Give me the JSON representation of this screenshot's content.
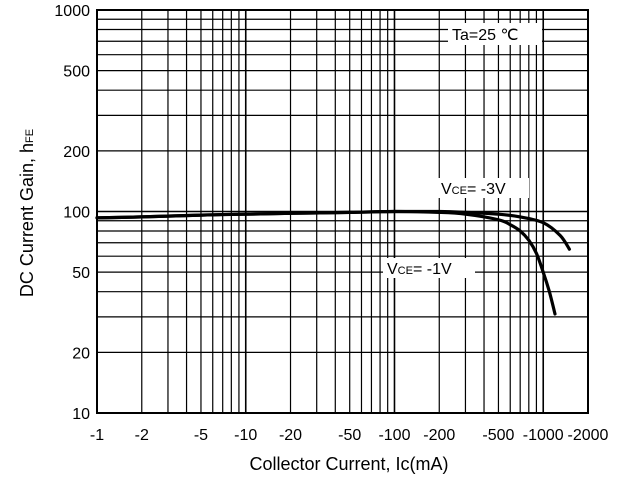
{
  "chart_data": {
    "type": "line",
    "title": "",
    "xlabel": "Collector Current, Ic(mA)",
    "ylabel_main": "DC Current Gain, h",
    "ylabel_sub": "FE",
    "x_scale": "log",
    "y_scale": "log",
    "xlim": [
      -1,
      -2000
    ],
    "ylim": [
      10,
      1000
    ],
    "x_ticks": [
      {
        "value": -1,
        "label": "-1"
      },
      {
        "value": -2,
        "label": "-2"
      },
      {
        "value": -5,
        "label": "-5"
      },
      {
        "value": -10,
        "label": "-10"
      },
      {
        "value": -20,
        "label": "-20"
      },
      {
        "value": -50,
        "label": "-50"
      },
      {
        "value": -100,
        "label": "-100"
      },
      {
        "value": -200,
        "label": "-200"
      },
      {
        "value": -500,
        "label": "-500"
      },
      {
        "value": -1000,
        "label": "-1000"
      },
      {
        "value": -2000,
        "label": "-2000"
      }
    ],
    "y_ticks": [
      {
        "value": 10,
        "label": "10"
      },
      {
        "value": 20,
        "label": "20"
      },
      {
        "value": 50,
        "label": "50"
      },
      {
        "value": 100,
        "label": "100"
      },
      {
        "value": 200,
        "label": "200"
      },
      {
        "value": 500,
        "label": "500"
      },
      {
        "value": 1000,
        "label": "1000"
      }
    ],
    "grid": true,
    "condition_label": "Ta=25 ℃",
    "series": [
      {
        "name": "VCE= -3V",
        "label_main": "V",
        "label_sub": "CE",
        "label_rest": "= -3V",
        "x": [
          -1,
          -2,
          -5,
          -10,
          -20,
          -50,
          -100,
          -200,
          -300,
          -500,
          -700,
          -1000,
          -1300,
          -1500
        ],
        "y": [
          93,
          94,
          96,
          97,
          98,
          99,
          100,
          100,
          99,
          97,
          94,
          88,
          76,
          65
        ]
      },
      {
        "name": "VCE= -1V",
        "label_main": "V",
        "label_sub": "CE",
        "label_rest": "= -1V",
        "x": [
          -1,
          -2,
          -5,
          -10,
          -20,
          -50,
          -100,
          -200,
          -300,
          -500,
          -600,
          -700,
          -800,
          -900,
          -1000,
          -1100,
          -1200
        ],
        "y": [
          93,
          94,
          96,
          97,
          98,
          99,
          100,
          99,
          97,
          91,
          86,
          80,
          72,
          62,
          50,
          40,
          31
        ]
      }
    ]
  }
}
